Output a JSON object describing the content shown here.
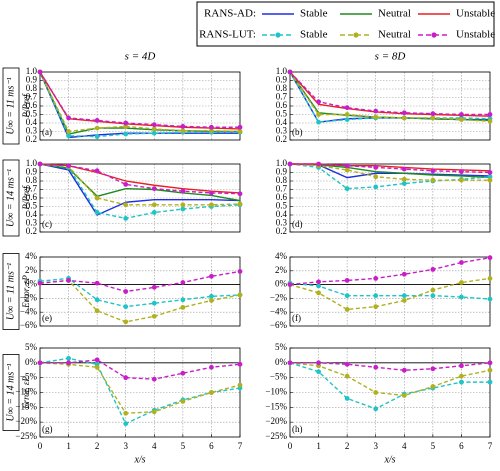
{
  "legend_groups": [
    "RANS-AD:",
    "RANS-LUT:"
  ],
  "column_titles": [
    "s = 4D",
    "s = 8D"
  ],
  "row_labels": [
    "U∞ = 11 ms⁻¹",
    "U∞ = 14 ms⁻¹",
    "U∞ = 11 ms⁻¹",
    "U∞ = 14 ms⁻¹"
  ],
  "chart_data": [
    {
      "type": "line",
      "panel_label": "(a)",
      "ylabel": "P/Pref",
      "x": [
        0,
        1,
        2,
        3,
        4,
        5,
        6,
        7
      ],
      "xlim": [
        0,
        7
      ],
      "ylim": [
        0.2,
        1
      ],
      "grid": true,
      "yticks": [
        0.2,
        0.3,
        0.4,
        0.5,
        0.6,
        0.7,
        0.8,
        0.9,
        {
          "value": 1,
          "label": "1.0"
        }
      ],
      "series": [
        {
          "name": "Stable",
          "color": "#1f2fe0",
          "linestyle": "solid",
          "values": [
            1.0,
            0.23,
            0.26,
            0.28,
            0.28,
            0.28,
            0.28,
            0.28
          ]
        },
        {
          "name": "Neutral",
          "color": "#1f8a1f",
          "linestyle": "solid",
          "values": [
            1.0,
            0.27,
            0.34,
            0.34,
            0.32,
            0.31,
            0.3,
            0.3
          ]
        },
        {
          "name": "Unstable",
          "color": "#e82020",
          "linestyle": "solid",
          "values": [
            1.0,
            0.45,
            0.42,
            0.39,
            0.37,
            0.35,
            0.34,
            0.33
          ]
        },
        {
          "name": "Stable",
          "color": "#20c4c4",
          "linestyle": "dashed",
          "marker": "o",
          "values": [
            1.0,
            0.25,
            0.24,
            0.27,
            0.28,
            0.29,
            0.29,
            0.29
          ]
        },
        {
          "name": "Neutral",
          "color": "#b0b020",
          "linestyle": "dashed",
          "marker": "o",
          "values": [
            1.0,
            0.3,
            0.34,
            0.36,
            0.33,
            0.31,
            0.31,
            0.3
          ]
        },
        {
          "name": "Unstable",
          "color": "#c81ec8",
          "linestyle": "dashed",
          "marker": "o",
          "values": [
            1.0,
            0.46,
            0.43,
            0.4,
            0.38,
            0.36,
            0.35,
            0.35
          ]
        }
      ]
    },
    {
      "type": "line",
      "panel_label": "(b)",
      "x": [
        0,
        1,
        2,
        3,
        4,
        5,
        6,
        7
      ],
      "xlim": [
        0,
        7
      ],
      "ylim": [
        0.2,
        1
      ],
      "grid": true,
      "yticks": [
        0.2,
        0.3,
        0.4,
        0.5,
        0.6,
        0.7,
        0.8,
        0.9,
        {
          "value": 1,
          "label": "1.0"
        }
      ],
      "series": [
        {
          "name": "Stable",
          "color": "#1f2fe0",
          "linestyle": "solid",
          "values": [
            1.0,
            0.41,
            0.45,
            0.46,
            0.46,
            0.45,
            0.44,
            0.44
          ]
        },
        {
          "name": "Neutral",
          "color": "#1f8a1f",
          "linestyle": "solid",
          "values": [
            1.0,
            0.52,
            0.49,
            0.47,
            0.46,
            0.45,
            0.44,
            0.43
          ]
        },
        {
          "name": "Unstable",
          "color": "#e82020",
          "linestyle": "solid",
          "values": [
            1.0,
            0.62,
            0.57,
            0.53,
            0.51,
            0.5,
            0.49,
            0.48
          ]
        },
        {
          "name": "Stable",
          "color": "#20c4c4",
          "linestyle": "dashed",
          "marker": "o",
          "values": [
            1.0,
            0.41,
            0.44,
            0.46,
            0.46,
            0.46,
            0.46,
            0.45
          ]
        },
        {
          "name": "Neutral",
          "color": "#b0b020",
          "linestyle": "dashed",
          "marker": "o",
          "values": [
            1.0,
            0.5,
            0.5,
            0.47,
            0.46,
            0.46,
            0.44,
            0.42
          ]
        },
        {
          "name": "Unstable",
          "color": "#c81ec8",
          "linestyle": "dashed",
          "marker": "o",
          "values": [
            1.0,
            0.65,
            0.58,
            0.54,
            0.52,
            0.51,
            0.5,
            0.5
          ]
        }
      ]
    },
    {
      "type": "line",
      "panel_label": "(c)",
      "ylabel": "P/Pref",
      "x": [
        0,
        1,
        2,
        3,
        4,
        5,
        6,
        7
      ],
      "xlim": [
        0,
        7
      ],
      "ylim": [
        0.2,
        1
      ],
      "grid": true,
      "yticks": [
        0.2,
        0.3,
        0.4,
        0.5,
        0.6,
        0.7,
        0.8,
        0.9,
        {
          "value": 1,
          "label": "1.0"
        }
      ],
      "series": [
        {
          "name": "Stable",
          "color": "#1f2fe0",
          "linestyle": "solid",
          "values": [
            1.0,
            0.93,
            0.4,
            0.55,
            0.58,
            0.58,
            0.58,
            0.57
          ]
        },
        {
          "name": "Neutral",
          "color": "#1f8a1f",
          "linestyle": "solid",
          "values": [
            1.0,
            0.95,
            0.62,
            0.71,
            0.7,
            0.66,
            0.63,
            0.57
          ]
        },
        {
          "name": "Unstable",
          "color": "#e82020",
          "linestyle": "solid",
          "values": [
            1.0,
            0.98,
            0.9,
            0.8,
            0.75,
            0.71,
            0.68,
            0.66
          ]
        },
        {
          "name": "Stable",
          "color": "#20c4c4",
          "linestyle": "dashed",
          "marker": "o",
          "values": [
            1.0,
            0.96,
            0.43,
            0.36,
            0.43,
            0.47,
            0.5,
            0.52
          ]
        },
        {
          "name": "Neutral",
          "color": "#b0b020",
          "linestyle": "dashed",
          "marker": "o",
          "values": [
            1.0,
            0.97,
            0.6,
            0.52,
            0.52,
            0.52,
            0.52,
            0.53
          ]
        },
        {
          "name": "Unstable",
          "color": "#c81ec8",
          "linestyle": "dashed",
          "marker": "o",
          "values": [
            1.0,
            0.98,
            0.92,
            0.76,
            0.71,
            0.68,
            0.66,
            0.65
          ]
        }
      ]
    },
    {
      "type": "line",
      "panel_label": "(d)",
      "x": [
        0,
        1,
        2,
        3,
        4,
        5,
        6,
        7
      ],
      "xlim": [
        0,
        7
      ],
      "ylim": [
        0.2,
        1
      ],
      "grid": true,
      "yticks": [
        0.2,
        0.3,
        0.4,
        0.5,
        0.6,
        0.7,
        0.8,
        0.9,
        {
          "value": 1,
          "label": "1.0"
        }
      ],
      "series": [
        {
          "name": "Stable",
          "color": "#1f2fe0",
          "linestyle": "solid",
          "values": [
            1.0,
            0.99,
            0.84,
            0.89,
            0.89,
            0.88,
            0.87,
            0.86
          ]
        },
        {
          "name": "Neutral",
          "color": "#1f8a1f",
          "linestyle": "solid",
          "values": [
            1.0,
            0.99,
            0.96,
            0.91,
            0.89,
            0.87,
            0.86,
            0.84
          ]
        },
        {
          "name": "Unstable",
          "color": "#e82020",
          "linestyle": "solid",
          "values": [
            1.0,
            1.0,
            0.98,
            0.98,
            0.96,
            0.94,
            0.93,
            0.92
          ]
        },
        {
          "name": "Stable",
          "color": "#20c4c4",
          "linestyle": "dashed",
          "marker": "o",
          "values": [
            1.0,
            0.96,
            0.71,
            0.73,
            0.77,
            0.8,
            0.82,
            0.85
          ]
        },
        {
          "name": "Neutral",
          "color": "#b0b020",
          "linestyle": "dashed",
          "marker": "o",
          "values": [
            1.0,
            0.98,
            0.93,
            0.85,
            0.82,
            0.81,
            0.81,
            0.81
          ]
        },
        {
          "name": "Unstable",
          "color": "#c81ec8",
          "linestyle": "dashed",
          "marker": "o",
          "values": [
            1.0,
            1.0,
            0.98,
            0.96,
            0.94,
            0.92,
            0.91,
            0.9
          ]
        }
      ]
    },
    {
      "type": "line",
      "panel_label": "(e)",
      "ylabel": "Error, εP",
      "x": [
        0,
        1,
        2,
        3,
        4,
        5,
        6,
        7
      ],
      "xlim": [
        0,
        7
      ],
      "ylim": [
        -6,
        4
      ],
      "grid": true,
      "zero_line": true,
      "yticks": [
        {
          "value": -6,
          "label": "−6%"
        },
        {
          "value": -4,
          "label": "−4%"
        },
        {
          "value": -2,
          "label": "−2%"
        },
        {
          "value": 0,
          "label": "0%"
        },
        {
          "value": 2,
          "label": "2%"
        },
        {
          "value": 4,
          "label": "4%"
        }
      ],
      "series": [
        {
          "name": "Stable",
          "color": "#20c4c4",
          "linestyle": "dashed",
          "marker": "o",
          "values": [
            0.5,
            0.9,
            -2.2,
            -3.2,
            -2.7,
            -2.2,
            -1.7,
            -1.5
          ]
        },
        {
          "name": "Neutral",
          "color": "#b0b020",
          "linestyle": "dashed",
          "marker": "o",
          "values": [
            0.2,
            0.6,
            -3.8,
            -5.4,
            -4.6,
            -3.3,
            -2.3,
            -1.5
          ]
        },
        {
          "name": "Unstable",
          "color": "#c81ec8",
          "linestyle": "dashed",
          "marker": "o",
          "values": [
            0.2,
            0.6,
            0.2,
            -1.0,
            -0.4,
            0.3,
            1.2,
            1.9
          ]
        }
      ]
    },
    {
      "type": "line",
      "panel_label": "(f)",
      "x": [
        0,
        1,
        2,
        3,
        4,
        5,
        6,
        7
      ],
      "xlim": [
        0,
        7
      ],
      "ylim": [
        -6,
        4
      ],
      "grid": true,
      "zero_line": true,
      "yticks": [
        {
          "value": -6,
          "label": "−6%"
        },
        {
          "value": -4,
          "label": "−4%"
        },
        {
          "value": -2,
          "label": "−2%"
        },
        {
          "value": 0,
          "label": "0%"
        },
        {
          "value": 2,
          "label": "2%"
        },
        {
          "value": 4,
          "label": "4%"
        }
      ],
      "series": [
        {
          "name": "Stable",
          "color": "#20c4c4",
          "linestyle": "dashed",
          "marker": "o",
          "values": [
            0.2,
            -0.2,
            -1.6,
            -1.6,
            -1.6,
            -1.6,
            -1.8,
            -2.1
          ]
        },
        {
          "name": "Neutral",
          "color": "#b0b020",
          "linestyle": "dashed",
          "marker": "o",
          "values": [
            0.0,
            -1.2,
            -3.6,
            -3.2,
            -2.3,
            -0.8,
            0.3,
            0.9
          ]
        },
        {
          "name": "Unstable",
          "color": "#c81ec8",
          "linestyle": "dashed",
          "marker": "o",
          "values": [
            0.0,
            0.4,
            0.6,
            0.9,
            1.5,
            2.2,
            3.2,
            3.9
          ]
        }
      ]
    },
    {
      "type": "line",
      "panel_label": "(g)",
      "ylabel": "Error, εP",
      "xlabel": "x/s",
      "x": [
        0,
        1,
        2,
        3,
        4,
        5,
        6,
        7
      ],
      "xlim": [
        0,
        7
      ],
      "xticks": [
        0,
        1,
        2,
        3,
        4,
        5,
        6,
        7
      ],
      "ylim": [
        -25,
        5
      ],
      "grid": true,
      "zero_line": true,
      "yticks": [
        {
          "value": -25,
          "label": "−25%"
        },
        {
          "value": -20,
          "label": "−20%"
        },
        {
          "value": -15,
          "label": "−15%"
        },
        {
          "value": -10,
          "label": "−10%"
        },
        {
          "value": -5,
          "label": "−5%"
        },
        {
          "value": 0,
          "label": "0%"
        },
        {
          "value": 5,
          "label": "5%"
        }
      ],
      "series": [
        {
          "name": "Stable",
          "color": "#20c4c4",
          "linestyle": "dashed",
          "marker": "o",
          "values": [
            0.0,
            1.5,
            -0.5,
            -20.5,
            -16.0,
            -12.5,
            -10.0,
            -8.5
          ]
        },
        {
          "name": "Neutral",
          "color": "#b0b020",
          "linestyle": "dashed",
          "marker": "o",
          "values": [
            0.0,
            -0.5,
            -1.5,
            -17.0,
            -16.5,
            -13.0,
            -10.0,
            -7.5
          ]
        },
        {
          "name": "Unstable",
          "color": "#c81ec8",
          "linestyle": "dashed",
          "marker": "o",
          "values": [
            0.0,
            0.0,
            1.0,
            -5.0,
            -5.5,
            -3.5,
            -1.5,
            -0.5
          ]
        }
      ]
    },
    {
      "type": "line",
      "panel_label": "(h)",
      "xlabel": "x/s",
      "x": [
        0,
        1,
        2,
        3,
        4,
        5,
        6,
        7
      ],
      "xlim": [
        0,
        7
      ],
      "xticks": [
        0,
        1,
        2,
        3,
        4,
        5,
        6,
        7
      ],
      "ylim": [
        -25,
        5
      ],
      "grid": true,
      "zero_line": true,
      "yticks": [
        {
          "value": -25,
          "label": "−25%"
        },
        {
          "value": -20,
          "label": "−20%"
        },
        {
          "value": -15,
          "label": "−15%"
        },
        {
          "value": -10,
          "label": "−10%"
        },
        {
          "value": -5,
          "label": "−5%"
        },
        {
          "value": 0,
          "label": "0%"
        },
        {
          "value": 5,
          "label": "5%"
        }
      ],
      "series": [
        {
          "name": "Stable",
          "color": "#20c4c4",
          "linestyle": "dashed",
          "marker": "o",
          "values": [
            0.0,
            -3.0,
            -12.0,
            -15.5,
            -10.5,
            -8.5,
            -6.5,
            -6.5
          ]
        },
        {
          "name": "Neutral",
          "color": "#b0b020",
          "linestyle": "dashed",
          "marker": "o",
          "values": [
            0.0,
            -1.0,
            -4.5,
            -10.0,
            -11.0,
            -8.0,
            -4.5,
            -2.5
          ]
        },
        {
          "name": "Unstable",
          "color": "#c81ec8",
          "linestyle": "dashed",
          "marker": "o",
          "values": [
            0.0,
            0.0,
            -0.5,
            -1.5,
            -2.5,
            -2.0,
            -1.0,
            0.0
          ]
        }
      ]
    }
  ]
}
